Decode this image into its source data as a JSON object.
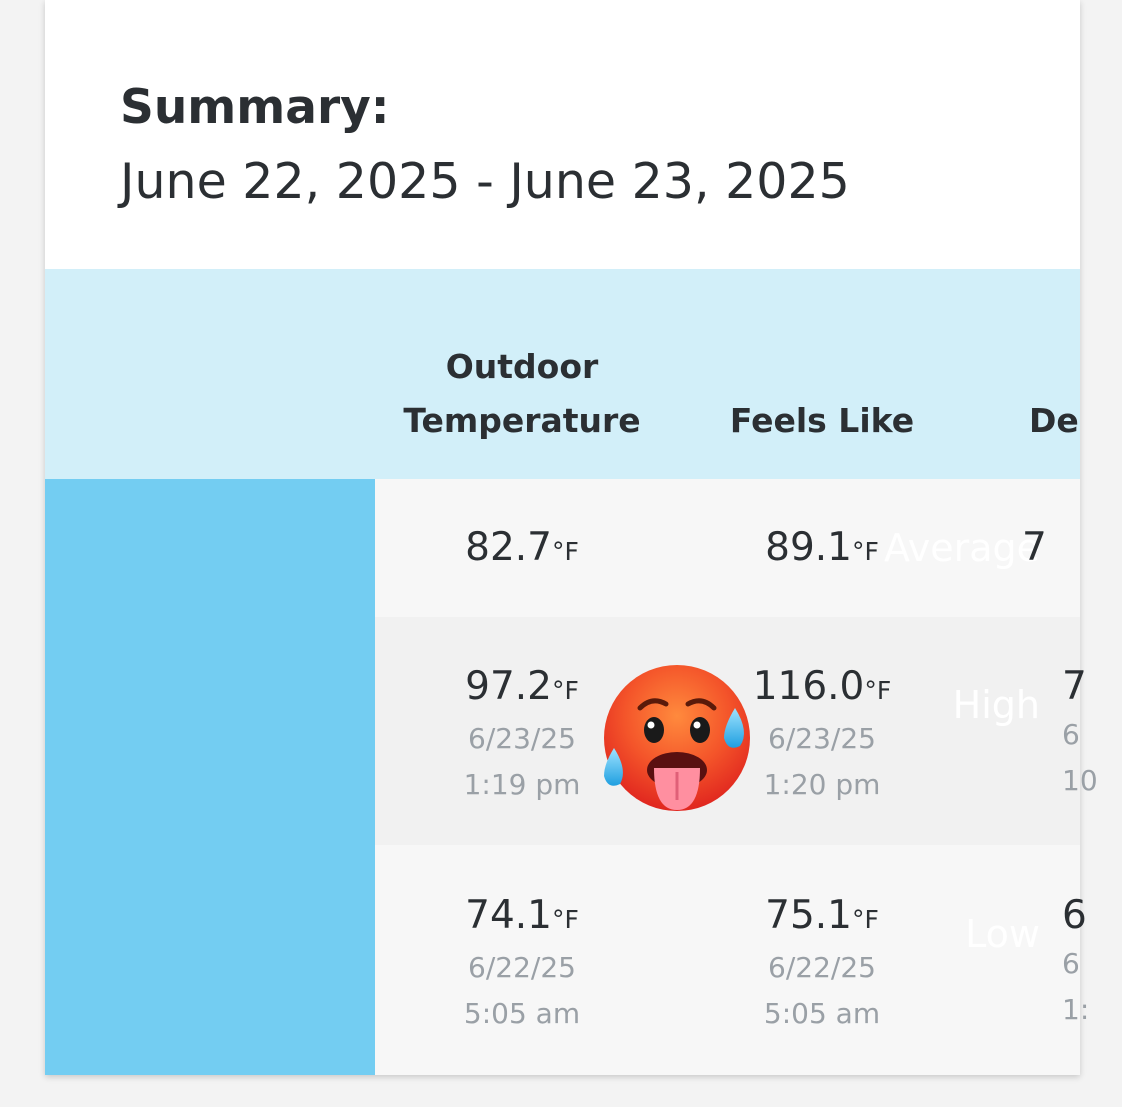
{
  "summary": {
    "title": "Summary:",
    "dates": "June 22, 2025 - June 23, 2025"
  },
  "columns": {
    "outdoor_line1": "Outdoor",
    "outdoor_line2": "Temperature",
    "feels_like": "Feels Like",
    "dew_point_partial": "De"
  },
  "rows": {
    "average": {
      "label": "Average",
      "outdoor": "82.7",
      "feels_like": "89.1",
      "dew_partial": "7"
    },
    "high": {
      "label": "High",
      "outdoor": "97.2",
      "outdoor_date": "6/23/25",
      "outdoor_time": "1:19 pm",
      "feels_like": "116.0",
      "feels_like_date": "6/23/25",
      "feels_like_time": "1:20 pm",
      "dew_partial": "7",
      "dew_date_partial": "6",
      "dew_time_partial": "10"
    },
    "low": {
      "label": "Low",
      "outdoor": "74.1",
      "outdoor_date": "6/22/25",
      "outdoor_time": "5:05 am",
      "feels_like": "75.1",
      "feels_like_date": "6/22/25",
      "feels_like_time": "5:05 am",
      "dew_partial": "6",
      "dew_date_partial": "6",
      "dew_time_partial": "1:"
    }
  },
  "unit": "°F",
  "icons": {
    "hot_face": "hot-face-emoji"
  },
  "colors": {
    "label_column": "#73cdf2",
    "header_band": "#d2eff9",
    "row_light": "#f7f7f7",
    "row_mid": "#f1f1f1",
    "meta_text": "#9aa0a6"
  }
}
